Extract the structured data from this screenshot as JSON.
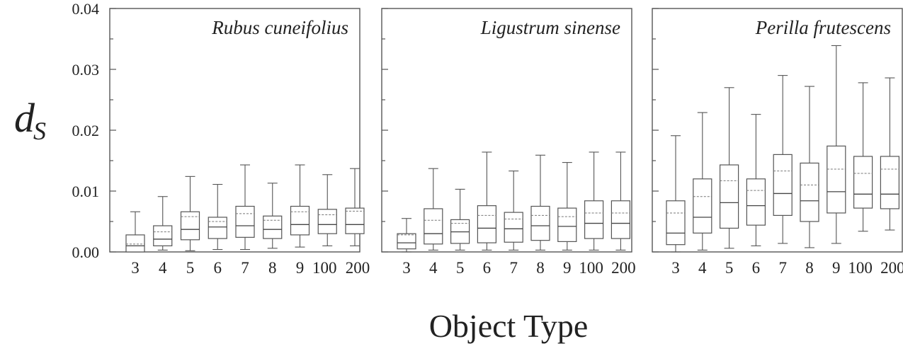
{
  "chart_data": {
    "type": "box",
    "xlabel": "Object Type",
    "ylabel": "d",
    "ylabel_subscript": "S",
    "ylim": [
      0,
      0.04
    ],
    "yticks": [
      0.0,
      0.01,
      0.02,
      0.03,
      0.04
    ],
    "ytick_labels": [
      "0.00",
      "0.01",
      "0.02",
      "0.03",
      "0.04"
    ],
    "categories": [
      "3",
      "4",
      "5",
      "6",
      "7",
      "8",
      "9",
      "100",
      "200"
    ],
    "panels": [
      {
        "title": "Rubus cuneifolius",
        "boxes": [
          {
            "min": 0.0,
            "q1": 0.0,
            "median": 0.001,
            "q3": 0.0028,
            "max": 0.0066,
            "mean": 0.0013
          },
          {
            "min": 0.0003,
            "q1": 0.001,
            "median": 0.0021,
            "q3": 0.0043,
            "max": 0.0091,
            "mean": 0.0033
          },
          {
            "min": 0.0002,
            "q1": 0.002,
            "median": 0.0037,
            "q3": 0.0066,
            "max": 0.0124,
            "mean": 0.0058
          },
          {
            "min": 0.0004,
            "q1": 0.0022,
            "median": 0.0041,
            "q3": 0.0057,
            "max": 0.0111,
            "mean": 0.005
          },
          {
            "min": 0.0004,
            "q1": 0.0024,
            "median": 0.0043,
            "q3": 0.0075,
            "max": 0.0143,
            "mean": 0.0063
          },
          {
            "min": 0.0006,
            "q1": 0.0022,
            "median": 0.0037,
            "q3": 0.0059,
            "max": 0.0113,
            "mean": 0.0052
          },
          {
            "min": 0.0008,
            "q1": 0.0028,
            "median": 0.0045,
            "q3": 0.0075,
            "max": 0.0143,
            "mean": 0.0066
          },
          {
            "min": 0.001,
            "q1": 0.003,
            "median": 0.0045,
            "q3": 0.007,
            "max": 0.0127,
            "mean": 0.0061
          },
          {
            "min": 0.001,
            "q1": 0.003,
            "median": 0.0045,
            "q3": 0.0072,
            "max": 0.0137,
            "mean": 0.0067
          }
        ]
      },
      {
        "title": "Ligustrum sinense",
        "boxes": [
          {
            "min": 0.0,
            "q1": 0.0005,
            "median": 0.0015,
            "q3": 0.003,
            "max": 0.0055,
            "mean": 0.0028
          },
          {
            "min": 0.0003,
            "q1": 0.0013,
            "median": 0.003,
            "q3": 0.0071,
            "max": 0.0137,
            "mean": 0.0052
          },
          {
            "min": 0.0003,
            "q1": 0.0014,
            "median": 0.0033,
            "q3": 0.0053,
            "max": 0.0103,
            "mean": 0.0047
          },
          {
            "min": 0.0003,
            "q1": 0.0015,
            "median": 0.0039,
            "q3": 0.0076,
            "max": 0.0164,
            "mean": 0.006
          },
          {
            "min": 0.0003,
            "q1": 0.0016,
            "median": 0.0038,
            "q3": 0.0065,
            "max": 0.0133,
            "mean": 0.0054
          },
          {
            "min": 0.0003,
            "q1": 0.0019,
            "median": 0.0043,
            "q3": 0.0075,
            "max": 0.0159,
            "mean": 0.006
          },
          {
            "min": 0.0003,
            "q1": 0.0017,
            "median": 0.0042,
            "q3": 0.0072,
            "max": 0.0147,
            "mean": 0.0058
          },
          {
            "min": 0.0003,
            "q1": 0.0022,
            "median": 0.0047,
            "q3": 0.0084,
            "max": 0.0164,
            "mean": 0.0064
          },
          {
            "min": 0.0003,
            "q1": 0.0022,
            "median": 0.0047,
            "q3": 0.0084,
            "max": 0.0164,
            "mean": 0.0064
          }
        ]
      },
      {
        "title": "Perilla frutescens",
        "boxes": [
          {
            "min": 0.0,
            "q1": 0.0012,
            "median": 0.0031,
            "q3": 0.0084,
            "max": 0.0191,
            "mean": 0.0064
          },
          {
            "min": 0.0003,
            "q1": 0.0031,
            "median": 0.0057,
            "q3": 0.012,
            "max": 0.0229,
            "mean": 0.0091
          },
          {
            "min": 0.0006,
            "q1": 0.0039,
            "median": 0.0081,
            "q3": 0.0143,
            "max": 0.027,
            "mean": 0.0117
          },
          {
            "min": 0.001,
            "q1": 0.0044,
            "median": 0.0076,
            "q3": 0.012,
            "max": 0.0226,
            "mean": 0.0101
          },
          {
            "min": 0.0014,
            "q1": 0.006,
            "median": 0.0096,
            "q3": 0.016,
            "max": 0.029,
            "mean": 0.0133
          },
          {
            "min": 0.0007,
            "q1": 0.005,
            "median": 0.0084,
            "q3": 0.0146,
            "max": 0.0272,
            "mean": 0.011
          },
          {
            "min": 0.0014,
            "q1": 0.0064,
            "median": 0.0099,
            "q3": 0.0174,
            "max": 0.0339,
            "mean": 0.0136
          },
          {
            "min": 0.0034,
            "q1": 0.0072,
            "median": 0.0095,
            "q3": 0.0157,
            "max": 0.0278,
            "mean": 0.0129
          },
          {
            "min": 0.0036,
            "q1": 0.0071,
            "median": 0.0095,
            "q3": 0.0157,
            "max": 0.0286,
            "mean": 0.0136
          }
        ]
      }
    ]
  }
}
